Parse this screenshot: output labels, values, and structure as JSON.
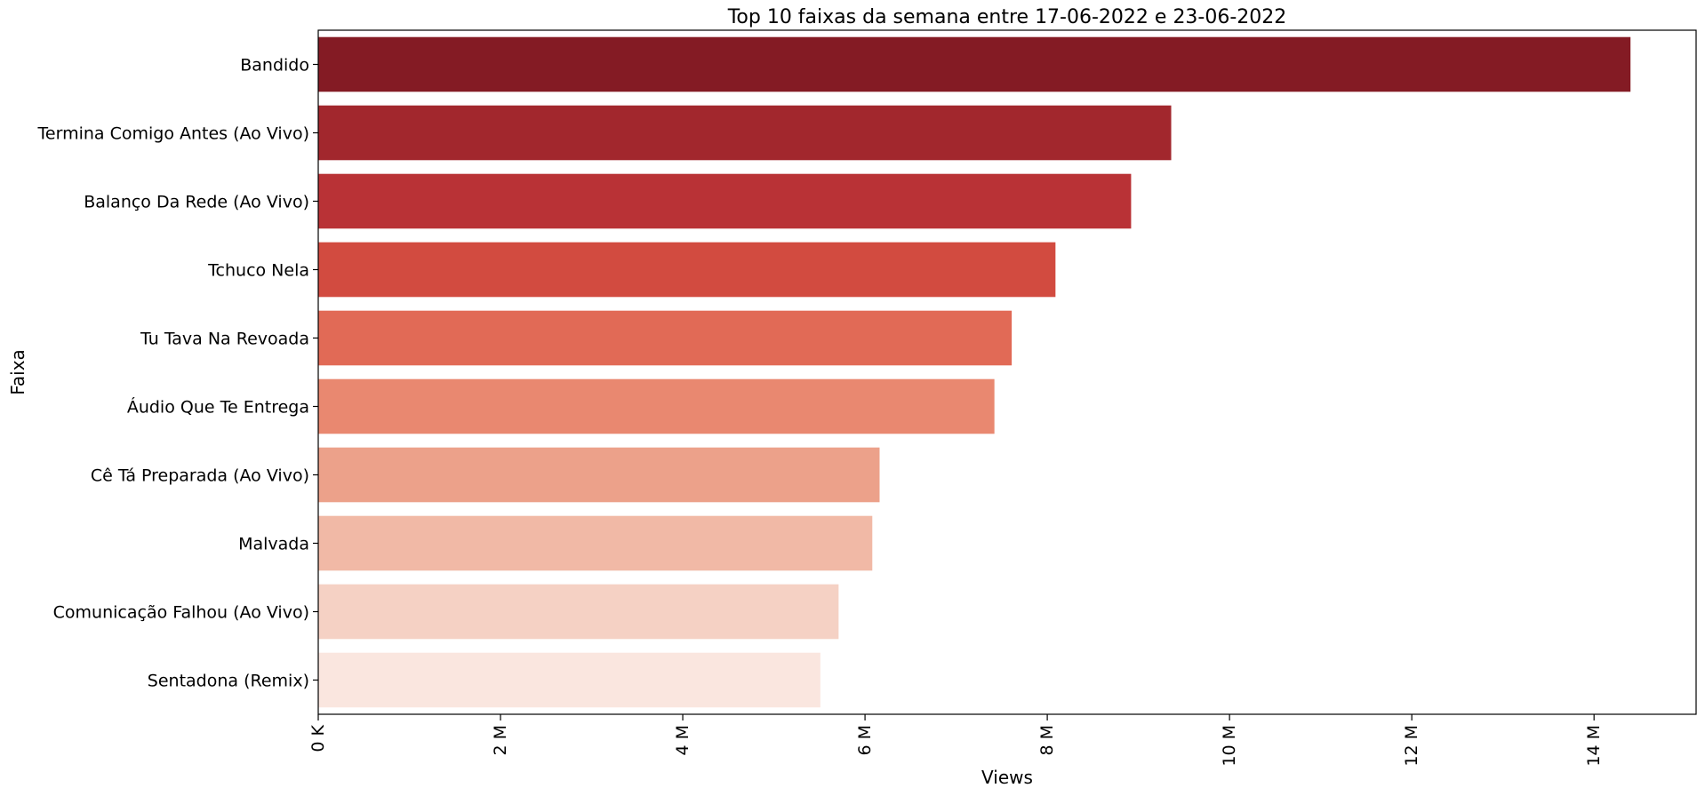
{
  "chart_data": {
    "type": "bar",
    "orientation": "horizontal",
    "title": "Top 10 faixas da semana entre 17-06-2022 e 23-06-2022",
    "xlabel": "Views",
    "ylabel": "Faixa",
    "categories": [
      "Bandido",
      "Termina Comigo Antes (Ao Vivo)",
      "Balanço Da Rede (Ao Vivo)",
      "Tchuco Nela",
      "Tu Tava Na Revoada",
      "Áudio Que Te Entrega",
      "Cê Tá Preparada (Ao Vivo)",
      "Malvada",
      "Comunicação Falhou (Ao Vivo)",
      "Sentadona (Remix)"
    ],
    "values": [
      14400000,
      9360000,
      8920000,
      8090000,
      7610000,
      7420000,
      6160000,
      6080000,
      5710000,
      5510000
    ],
    "colors": [
      "#841b24",
      "#a2272d",
      "#b93236",
      "#d24b40",
      "#e16a56",
      "#e98870",
      "#eca18a",
      "#f1b9a6",
      "#f5d1c4",
      "#fae6df"
    ],
    "xlim": [
      0,
      15120000
    ],
    "xticks": [
      0,
      2000000,
      4000000,
      6000000,
      8000000,
      10000000,
      12000000,
      14000000
    ],
    "xtick_labels": [
      "0 K",
      "2 M",
      "4 M",
      "6 M",
      "8 M",
      "10 M",
      "12 M",
      "14 M"
    ],
    "grid": false,
    "legend": "none"
  }
}
